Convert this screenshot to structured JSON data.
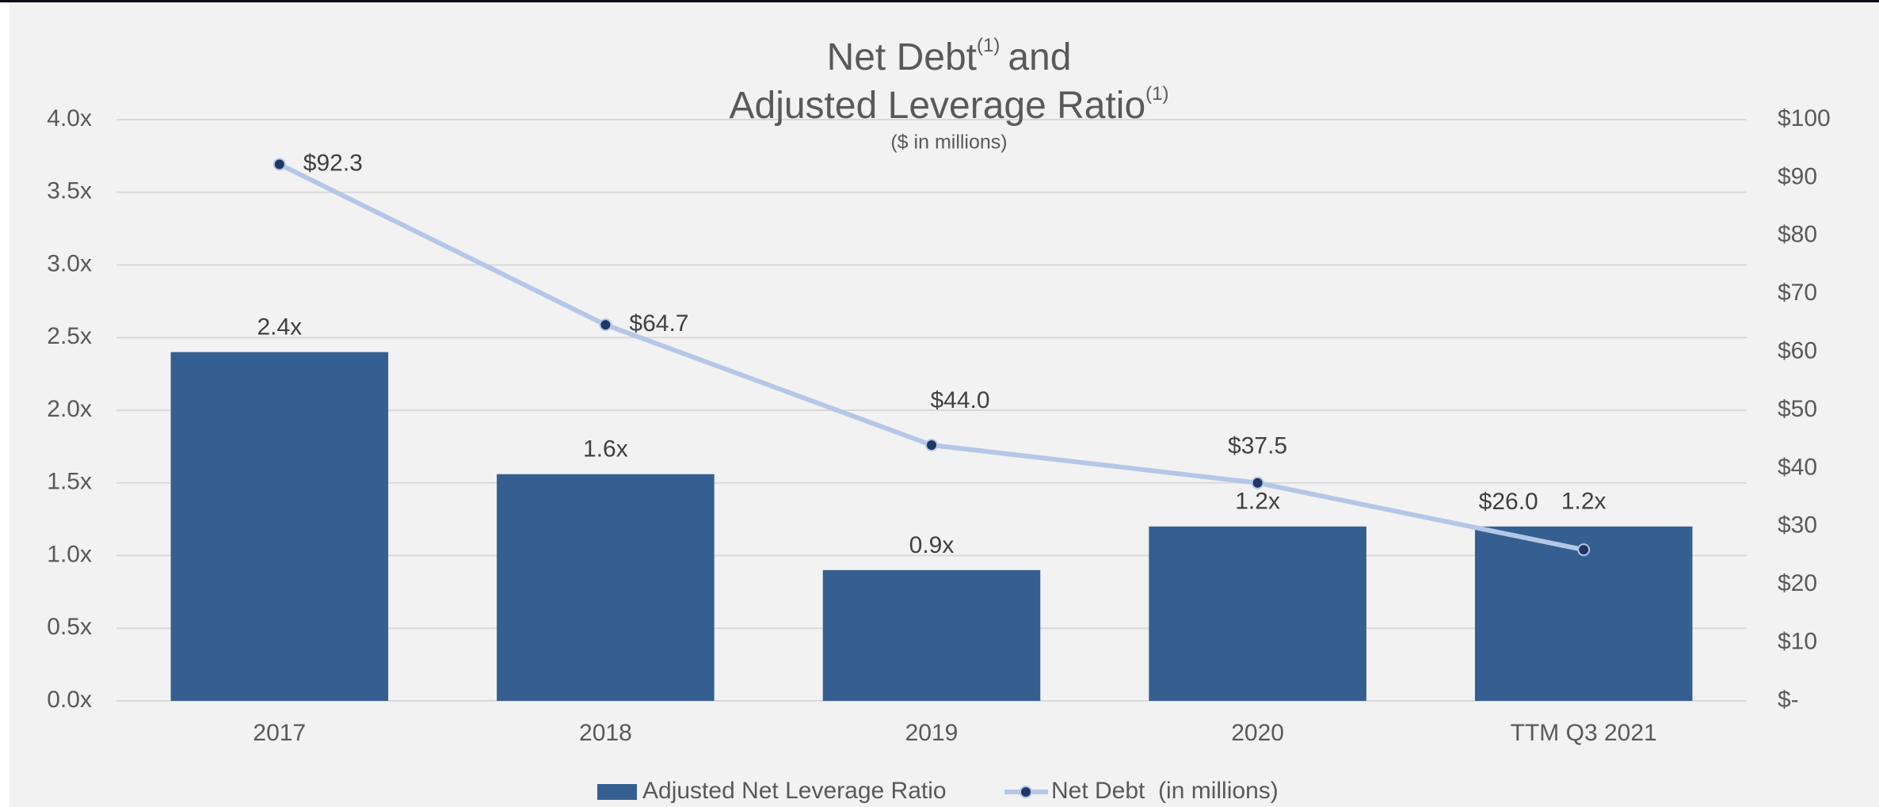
{
  "chart_data": {
    "type": "bar_line",
    "title": {
      "lines": [
        [
          "Net Debt",
          "(1)",
          "and"
        ],
        [
          "Adjusted Leverage Ratio",
          "(1)"
        ]
      ]
    },
    "subtitle": "($ in millions)",
    "categories": [
      "2017",
      "2018",
      "2019",
      "2020",
      "TTM Q3 2021"
    ],
    "series": [
      {
        "name": "Adjusted Net Leverage Ratio",
        "type": "bar",
        "axis": "y",
        "color": "#355f91",
        "values": [
          2.4,
          1.56,
          0.9,
          1.2,
          1.2
        ],
        "value_labels": [
          "2.4x",
          "1.6x",
          "0.9x",
          "1.2x",
          "1.2x"
        ]
      },
      {
        "name": "Net Debt  (in millions)",
        "type": "line",
        "axis": "y2",
        "color": "#b4c7e7",
        "marker_color": "#1f3864",
        "values": [
          92.3,
          64.7,
          44.0,
          37.5,
          26.0
        ],
        "value_labels": [
          "$92.3",
          "$64.7",
          "$44.0",
          "$37.5",
          "$26.0"
        ]
      }
    ],
    "ylim": [
      0,
      4
    ],
    "yticks": [
      {
        "value": 0,
        "label": "0.0x"
      },
      {
        "value": 0.5,
        "label": "0.5x"
      },
      {
        "value": 1,
        "label": "1.0x"
      },
      {
        "value": 1.5,
        "label": "1.5x"
      },
      {
        "value": 2,
        "label": "2.0x"
      },
      {
        "value": 2.5,
        "label": "2.5x"
      },
      {
        "value": 3,
        "label": "3.0x"
      },
      {
        "value": 3.5,
        "label": "3.5x"
      },
      {
        "value": 4,
        "label": "4.0x"
      }
    ],
    "y2lim": [
      0,
      100
    ],
    "y2ticks": [
      {
        "value": 0,
        "label": "$-"
      },
      {
        "value": 10,
        "label": "$10"
      },
      {
        "value": 20,
        "label": "$20"
      },
      {
        "value": 30,
        "label": "$30"
      },
      {
        "value": 40,
        "label": "$40"
      },
      {
        "value": 50,
        "label": "$50"
      },
      {
        "value": 60,
        "label": "$60"
      },
      {
        "value": 70,
        "label": "$70"
      },
      {
        "value": 80,
        "label": "$80"
      },
      {
        "value": 90,
        "label": "$90"
      },
      {
        "value": 100,
        "label": "$100"
      }
    ],
    "grid": true,
    "legend": "bottom"
  }
}
